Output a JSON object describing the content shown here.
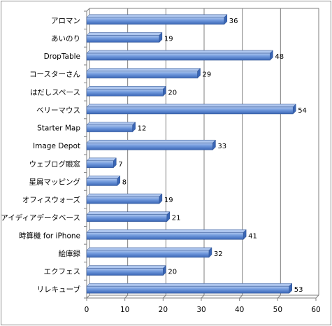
{
  "chart_data": {
    "type": "bar",
    "orientation": "horizontal",
    "categories": [
      "アロマン",
      "あいのり",
      "DropTable",
      "コースターさん",
      "はだしスペース",
      "ベリーマウス",
      "Starter Map",
      "Image Depot",
      "ウェブログ眼窓",
      "星屑マッピング",
      "オフィスウォーズ",
      "アイディアデータベース",
      "時算機 for iPhone",
      "絵庫録",
      "エクフェス",
      "リレキューブ"
    ],
    "values": [
      36,
      19,
      48,
      29,
      20,
      54,
      12,
      33,
      7,
      8,
      19,
      21,
      41,
      32,
      20,
      53
    ],
    "value_labels": [
      "36",
      "19",
      "48",
      "29",
      "20",
      "54",
      "12",
      "33",
      "7",
      "8",
      "19",
      "21",
      "41",
      "32",
      "20",
      "53"
    ],
    "xlim": [
      0,
      60
    ],
    "x_ticks": [
      "0",
      "10",
      "20",
      "30",
      "40",
      "50",
      "60"
    ],
    "x_tick_values": [
      0,
      10,
      20,
      30,
      40,
      50,
      60
    ],
    "title": "",
    "xlabel": "",
    "ylabel": "",
    "grid": "vertical",
    "legend": "none",
    "colors": {
      "bar_light": "#aec6ee",
      "bar_mid": "#6f98dc",
      "bar_dark": "#3a66b5",
      "bar_edge": "#2c4f8f",
      "grid": "#7f7f7f",
      "axis": "#7f7f7f"
    }
  }
}
